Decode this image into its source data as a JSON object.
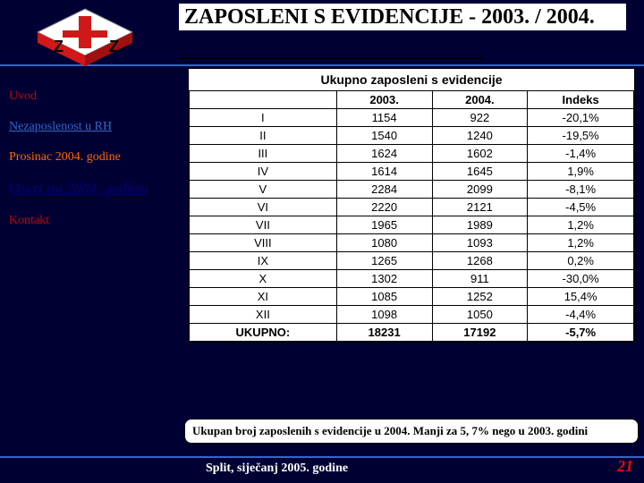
{
  "title": "ZAPOSLENI S EVIDENCIJE - 2003. / 2004.",
  "sidebar": {
    "items": [
      {
        "label": "Uvod",
        "cls": "red"
      },
      {
        "label": "Nezaposlenost u RH",
        "cls": "blue"
      },
      {
        "label": "Prosinac 2004. godine",
        "cls": "orange"
      },
      {
        "label": "Osvrt na 2004. godinu",
        "cls": "active"
      },
      {
        "label": "Kontakt",
        "cls": "red"
      }
    ]
  },
  "chart": {
    "title": "Ukupno zaposleni s evidencije",
    "columns": [
      "",
      "2003.",
      "2004.",
      "Indeks"
    ],
    "rows": [
      [
        "I",
        "1154",
        "922",
        "-20,1%"
      ],
      [
        "II",
        "1540",
        "1240",
        "-19,5%"
      ],
      [
        "III",
        "1624",
        "1602",
        "-1,4%"
      ],
      [
        "IV",
        "1614",
        "1645",
        "1,9%"
      ],
      [
        "V",
        "2284",
        "2099",
        "-8,1%"
      ],
      [
        "VI",
        "2220",
        "2121",
        "-4,5%"
      ],
      [
        "VII",
        "1965",
        "1989",
        "1,2%"
      ],
      [
        "VIII",
        "1080",
        "1093",
        "1,2%"
      ],
      [
        "IX",
        "1265",
        "1268",
        "0,2%"
      ],
      [
        "X",
        "1302",
        "911",
        "-30,0%"
      ],
      [
        "XI",
        "1085",
        "1252",
        "15,4%"
      ],
      [
        "XII",
        "1098",
        "1050",
        "-4,4%"
      ]
    ],
    "total": [
      "UKUPNO:",
      "18231",
      "17192",
      "-5,7%"
    ]
  },
  "caption": "Ukupan broj zaposlenih s evidencije u 2004. Manji za 5, 7% nego u 2003. godini",
  "footer": {
    "location": "Split, siječanj 2005. godine",
    "page": "21"
  },
  "logo": {
    "red": "#d01818",
    "white": "#ffffff",
    "shadow": "#888888"
  }
}
